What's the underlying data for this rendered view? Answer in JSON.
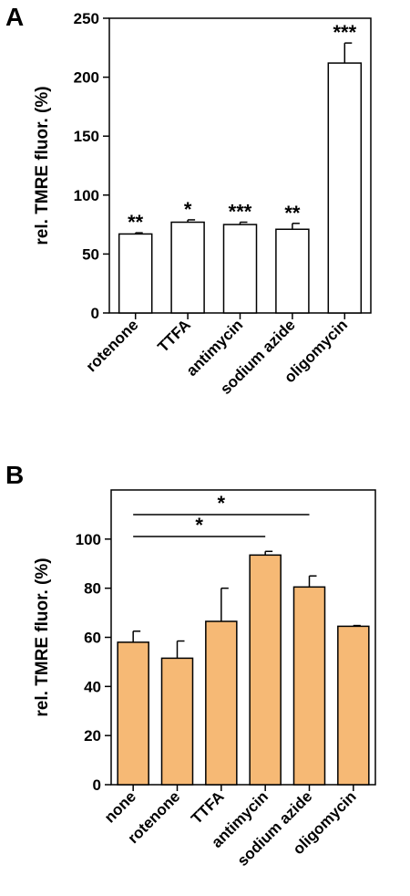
{
  "chart_data": [
    {
      "type": "bar",
      "panel_label": "A",
      "title": "",
      "xlabel": "",
      "ylabel": "rel. TMRE fluor. (%)",
      "ylim": [
        0,
        250
      ],
      "yticks": [
        0,
        50,
        100,
        150,
        200,
        250
      ],
      "categories": [
        "rotenone",
        "TTFA",
        "antimycin",
        "sodium azide",
        "oligomycin"
      ],
      "values": [
        67,
        77,
        75,
        71,
        212
      ],
      "errors": [
        1,
        2,
        2,
        5,
        17
      ],
      "significance": [
        "**",
        "*",
        "***",
        "**",
        "***"
      ],
      "bar_color": "#ffffff",
      "grid": false,
      "legend": "none"
    },
    {
      "type": "bar",
      "panel_label": "B",
      "title": "",
      "xlabel": "",
      "ylabel": "rel. TMRE fluor. (%)",
      "ylim": [
        0,
        120
      ],
      "yticks": [
        0,
        20,
        40,
        60,
        80,
        100
      ],
      "categories": [
        "none",
        "rotenone",
        "TTFA",
        "antimycin",
        "sodium azide",
        "oligomycin"
      ],
      "values": [
        58,
        51.5,
        66.5,
        93.5,
        80.5,
        64.5
      ],
      "errors": [
        4.5,
        7,
        13.5,
        1.5,
        4.5,
        0.3
      ],
      "comparisons": [
        {
          "from": "none",
          "to": "antimycin",
          "label": "*"
        },
        {
          "from": "none",
          "to": "sodium azide",
          "label": "*"
        }
      ],
      "bar_color": "#f6b975",
      "grid": false,
      "legend": "none"
    }
  ]
}
